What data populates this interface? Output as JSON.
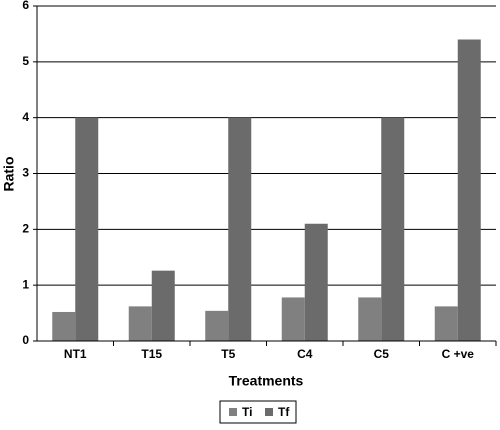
{
  "chart_data": {
    "type": "bar",
    "x_label": "Treatments",
    "y_label": "Ratio",
    "categories": [
      "NT1",
      "T15",
      "T5",
      "C4",
      "C5",
      "C +ve"
    ],
    "series": [
      {
        "name": "Ti",
        "color": "#808080",
        "values": [
          0.52,
          0.62,
          0.54,
          0.78,
          0.78,
          0.62
        ]
      },
      {
        "name": "Tf",
        "color": "#6b6b6b",
        "values": [
          4.0,
          1.26,
          4.0,
          2.1,
          4.0,
          5.4
        ]
      }
    ],
    "ylim": [
      0,
      6
    ],
    "yticks": [
      0,
      1,
      2,
      3,
      4,
      5,
      6
    ],
    "grid": true,
    "legend": "bottom"
  }
}
